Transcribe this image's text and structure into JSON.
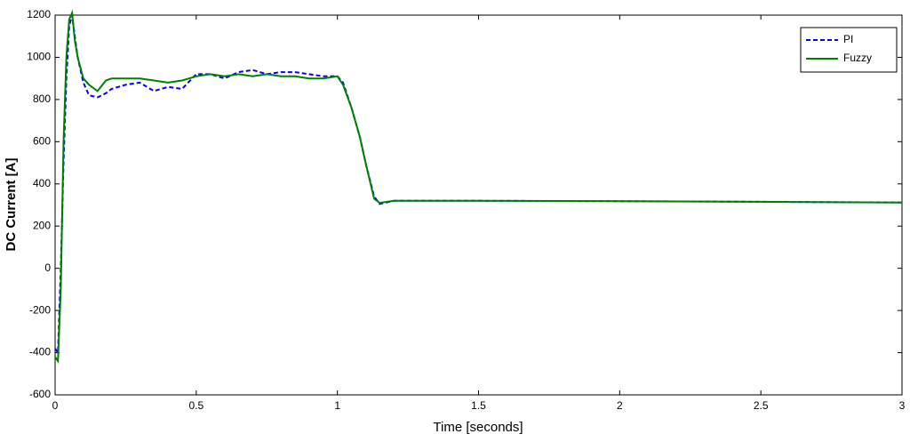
{
  "chart_data": {
    "type": "line",
    "x_label": "Time [seconds]",
    "y_label": "DC Current [A]",
    "x": [
      0,
      0.01,
      0.02,
      0.03,
      0.04,
      0.05,
      0.06,
      0.07,
      0.08,
      0.1,
      0.12,
      0.15,
      0.18,
      0.2,
      0.25,
      0.3,
      0.35,
      0.4,
      0.45,
      0.5,
      0.55,
      0.6,
      0.65,
      0.7,
      0.75,
      0.8,
      0.85,
      0.9,
      0.95,
      1.0,
      1.02,
      1.05,
      1.08,
      1.1,
      1.13,
      1.15,
      1.2,
      1.3,
      1.5,
      2.0,
      2.5,
      3.0
    ],
    "series": [
      {
        "name": "PI",
        "color": "#0000ff",
        "dash": true,
        "values": [
          -380,
          -400,
          0,
          500,
          900,
          1150,
          1200,
          1100,
          1000,
          880,
          820,
          810,
          830,
          850,
          870,
          880,
          840,
          860,
          850,
          920,
          920,
          900,
          930,
          940,
          920,
          930,
          930,
          920,
          910,
          910,
          880,
          760,
          620,
          500,
          340,
          305,
          320,
          320,
          320,
          318,
          315,
          312
        ]
      },
      {
        "name": "Fuzzy",
        "color": "#008000",
        "dash": false,
        "values": [
          -420,
          -440,
          -100,
          600,
          1000,
          1180,
          1210,
          1080,
          1000,
          900,
          870,
          840,
          890,
          900,
          900,
          900,
          890,
          880,
          890,
          910,
          920,
          910,
          920,
          910,
          920,
          910,
          910,
          900,
          900,
          910,
          870,
          760,
          620,
          500,
          330,
          310,
          320,
          320,
          320,
          318,
          315,
          312
        ]
      }
    ],
    "xlim": [
      0,
      3
    ],
    "xticks": [
      0,
      0.5,
      1,
      1.5,
      2,
      2.5,
      3
    ],
    "ylim": [
      -600,
      1200
    ],
    "yticks": [
      -600,
      -400,
      -200,
      0,
      200,
      400,
      600,
      800,
      1000,
      1200
    ],
    "grid": false,
    "legend": "top-right"
  }
}
